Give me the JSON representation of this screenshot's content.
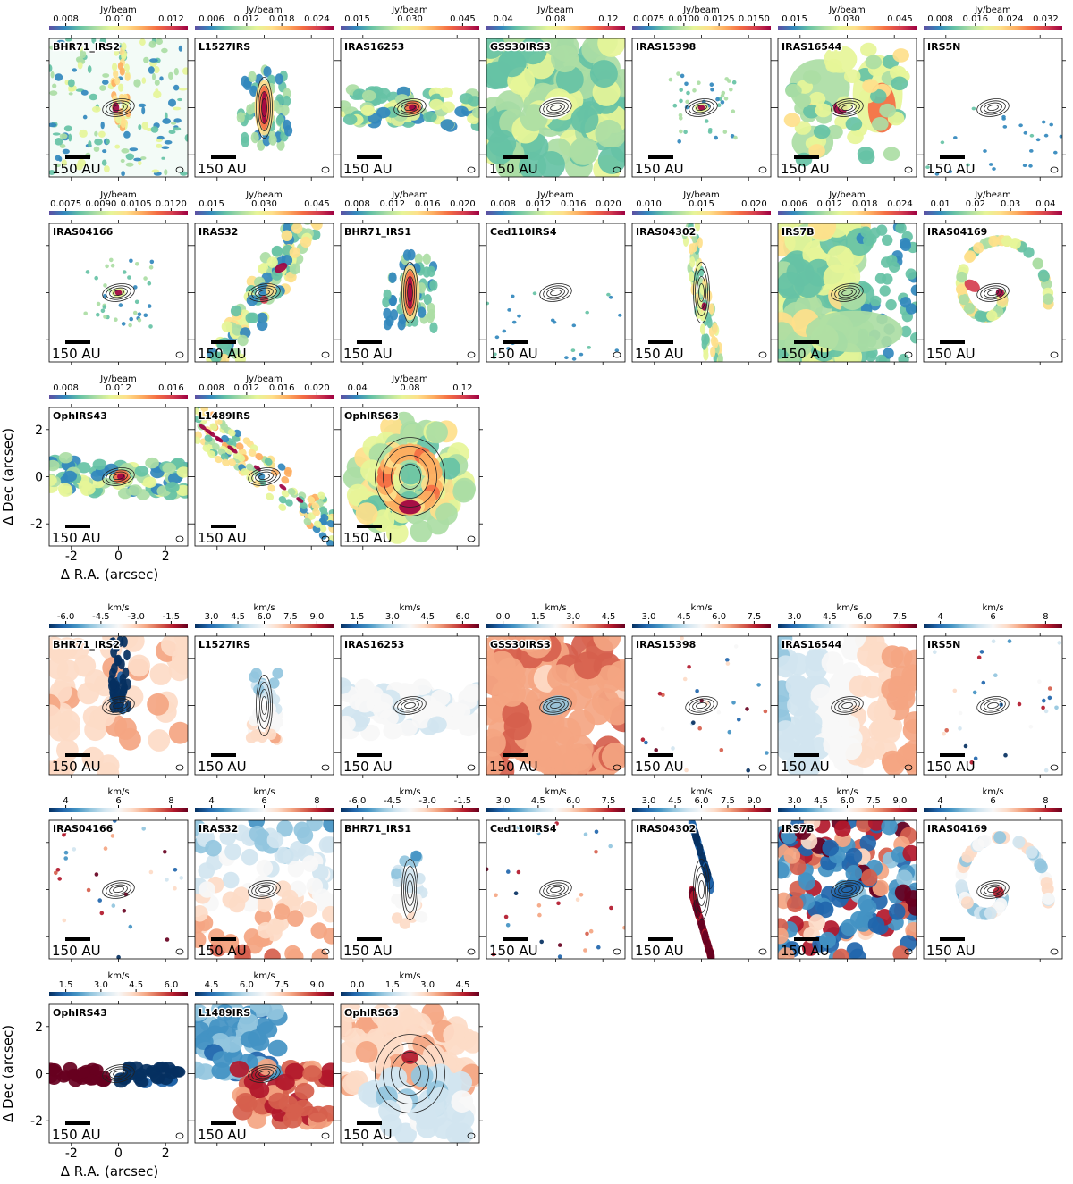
{
  "figure": {
    "scale_bar_label": "150 AU",
    "xlabel": "Δ R.A. (arcsec)",
    "ylabel": "Δ Dec (arcsec)",
    "axis_ticks": [
      -2,
      0,
      2
    ]
  },
  "intensity": {
    "unit": "Jy/beam",
    "colormap": [
      "#5e4fa2",
      "#3288bd",
      "#66c2a5",
      "#abdda4",
      "#e6f598",
      "#fee08b",
      "#fdae61",
      "#f46d43",
      "#d53e4f",
      "#9e0142"
    ],
    "panels": [
      {
        "name": "BHR71_IRS2",
        "ticks": [
          "0.008",
          "0.010",
          "0.012"
        ],
        "style": "scatter",
        "bg": "#f3fbf7"
      },
      {
        "name": "L1527IRS",
        "ticks": [
          "0.006",
          "0.012",
          "0.018",
          "0.024"
        ],
        "style": "blob"
      },
      {
        "name": "IRAS16253",
        "ticks": [
          "0.015",
          "0.030",
          "0.045"
        ],
        "style": "band"
      },
      {
        "name": "GSS30IRS3",
        "ticks": [
          "0.04",
          "0.08",
          "0.12"
        ],
        "style": "fill"
      },
      {
        "name": "IRAS15398",
        "ticks": [
          "0.0075",
          "0.0100",
          "0.0125",
          "0.0150"
        ],
        "style": "compact"
      },
      {
        "name": "IRAS16544",
        "ticks": [
          "0.015",
          "0.030",
          "0.045"
        ],
        "style": "cloud"
      },
      {
        "name": "IRS5N",
        "ticks": [
          "0.008",
          "0.016",
          "0.024",
          "0.032"
        ],
        "style": "faint"
      },
      {
        "name": "IRAS04166",
        "ticks": [
          "0.0075",
          "0.0090",
          "0.0105",
          "0.0120"
        ],
        "style": "compact"
      },
      {
        "name": "IRAS32",
        "ticks": [
          "0.015",
          "0.030",
          "0.045"
        ],
        "style": "diag"
      },
      {
        "name": "BHR71_IRS1",
        "ticks": [
          "0.008",
          "0.012",
          "0.016",
          "0.020"
        ],
        "style": "blob"
      },
      {
        "name": "Ced110IRS4",
        "ticks": [
          "0.008",
          "0.012",
          "0.016",
          "0.020"
        ],
        "style": "faint"
      },
      {
        "name": "IRAS04302",
        "ticks": [
          "0.010",
          "0.015",
          "0.020"
        ],
        "style": "vert"
      },
      {
        "name": "IRS7B",
        "ticks": [
          "0.006",
          "0.012",
          "0.018",
          "0.024"
        ],
        "style": "fillpatch"
      },
      {
        "name": "IRAS04169",
        "ticks": [
          "0.01",
          "0.02",
          "0.03",
          "0.04"
        ],
        "style": "spiral"
      },
      {
        "name": "OphIRS43",
        "ticks": [
          "0.008",
          "0.012",
          "0.016"
        ],
        "style": "band"
      },
      {
        "name": "L1489IRS",
        "ticks": [
          "0.008",
          "0.012",
          "0.016",
          "0.020"
        ],
        "style": "diag2"
      },
      {
        "name": "OphIRS63",
        "ticks": [
          "0.04",
          "0.08",
          "0.12"
        ],
        "style": "ring"
      }
    ]
  },
  "velocity": {
    "unit": "km/s",
    "colormap": [
      "#053061",
      "#2166ac",
      "#4393c3",
      "#92c5de",
      "#d1e5f0",
      "#f7f7f7",
      "#fddbc7",
      "#f4a582",
      "#d6604d",
      "#b2182b",
      "#67001f"
    ],
    "panels": [
      {
        "name": "BHR71_IRS2",
        "ticks": [
          "-6.0",
          "-4.5",
          "-3.0",
          "-1.5"
        ],
        "style": "jetblue"
      },
      {
        "name": "L1527IRS",
        "ticks": [
          "3.0",
          "4.5",
          "6.0",
          "7.5",
          "9.0"
        ],
        "style": "vgrad"
      },
      {
        "name": "IRAS16253",
        "ticks": [
          "1.5",
          "3.0",
          "4.5",
          "6.0"
        ],
        "style": "pale"
      },
      {
        "name": "GSS30IRS3",
        "ticks": [
          "0.0",
          "1.5",
          "3.0",
          "4.5"
        ],
        "style": "vfill"
      },
      {
        "name": "IRAS15398",
        "ticks": [
          "3.0",
          "4.5",
          "6.0",
          "7.5"
        ],
        "style": "vsparse"
      },
      {
        "name": "IRAS16544",
        "ticks": [
          "3.0",
          "4.5",
          "6.0",
          "7.5"
        ],
        "style": "vcloud"
      },
      {
        "name": "IRS5N",
        "ticks": [
          "4",
          "6",
          "8"
        ],
        "style": "vsparse"
      },
      {
        "name": "IRAS04166",
        "ticks": [
          "4",
          "6",
          "8"
        ],
        "style": "vsparse"
      },
      {
        "name": "IRAS32",
        "ticks": [
          "4",
          "6",
          "8"
        ],
        "style": "vdiag"
      },
      {
        "name": "BHR71_IRS1",
        "ticks": [
          "-6.0",
          "-4.5",
          "-3.0",
          "-1.5"
        ],
        "style": "vgrad"
      },
      {
        "name": "Ced110IRS4",
        "ticks": [
          "3.0",
          "4.5",
          "6.0",
          "7.5"
        ],
        "style": "vsparse"
      },
      {
        "name": "IRAS04302",
        "ticks": [
          "3.0",
          "4.5",
          "6.0",
          "7.5",
          "9.0"
        ],
        "style": "vvert"
      },
      {
        "name": "IRS7B",
        "ticks": [
          "3.0",
          "4.5",
          "6.0",
          "7.5",
          "9.0"
        ],
        "style": "vfillmix"
      },
      {
        "name": "IRAS04169",
        "ticks": [
          "4",
          "6",
          "8"
        ],
        "style": "vspiral"
      },
      {
        "name": "OphIRS43",
        "ticks": [
          "1.5",
          "3.0",
          "4.5",
          "6.0"
        ],
        "style": "vband"
      },
      {
        "name": "L1489IRS",
        "ticks": [
          "4.5",
          "6.0",
          "7.5",
          "9.0"
        ],
        "style": "vdiag2"
      },
      {
        "name": "OphIRS63",
        "ticks": [
          "0.0",
          "1.5",
          "3.0",
          "4.5"
        ],
        "style": "vring"
      }
    ]
  }
}
